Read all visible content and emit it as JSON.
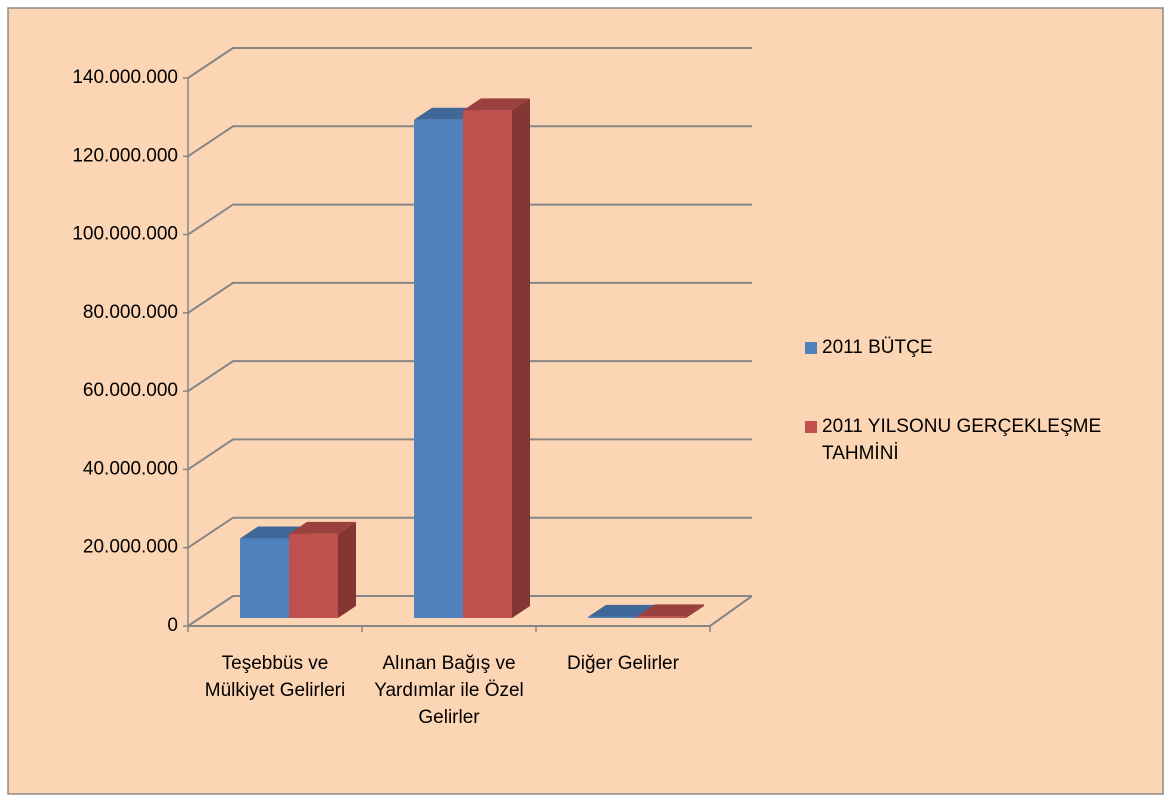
{
  "chart_data": {
    "type": "bar3d",
    "categories": [
      "Teşebbüs ve Mülkiyet Gelirleri",
      "Alınan Bağış ve Yardımlar ile Özel Gelirler",
      "Diğer Gelirler"
    ],
    "series": [
      {
        "name": "2011 BÜTÇE",
        "color": "#4f81bd",
        "values": [
          20300000,
          127300000,
          300000
        ]
      },
      {
        "name": "2011 YILSONU GERÇEKLEŞME TAHMİNİ",
        "color": "#c0504d",
        "values": [
          21500000,
          129700000,
          400000
        ]
      }
    ],
    "ylim": [
      0,
      140000000
    ],
    "yticks": [
      0,
      {
        "value": 20000000,
        "label": "20.000.000"
      },
      {
        "value": 40000000,
        "label": "40.000.000"
      },
      {
        "value": 60000000,
        "label": "60.000.000"
      },
      {
        "value": 80000000,
        "label": "80.000.000"
      },
      {
        "value": 100000000,
        "label": "100.000.000"
      },
      {
        "value": 120000000,
        "label": "120.000.000"
      },
      {
        "value": 140000000,
        "label": "140.000.000"
      }
    ],
    "grid": true,
    "legend": "right"
  }
}
